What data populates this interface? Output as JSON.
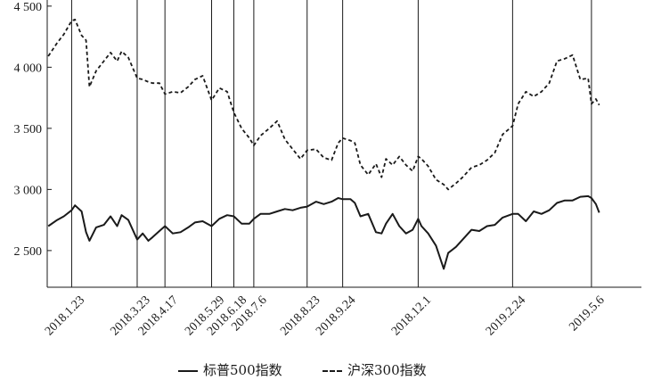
{
  "chart_data": {
    "type": "line",
    "ylim": [
      2200,
      4550
    ],
    "yticks": [
      2500,
      3000,
      3500,
      4000,
      4500
    ],
    "ytick_labels": [
      "2 500",
      "3 000",
      "3 500",
      "4 000",
      "4 500"
    ],
    "x_range": [
      "2018-01-01",
      "2019-06-20"
    ],
    "grid": false,
    "legend_position": "bottom",
    "event_dates": [
      {
        "date": "2018-01-23",
        "label": "2018.1.23"
      },
      {
        "date": "2018-03-23",
        "label": "2018.3.23"
      },
      {
        "date": "2018-04-17",
        "label": "2018.4.17"
      },
      {
        "date": "2018-05-29",
        "label": "2018.5.29"
      },
      {
        "date": "2018-06-18",
        "label": "2018.6.18"
      },
      {
        "date": "2018-07-06",
        "label": "2018.7.6"
      },
      {
        "date": "2018-08-23",
        "label": "2018.8.23"
      },
      {
        "date": "2018-09-24",
        "label": "2018.9.24"
      },
      {
        "date": "2018-12-01",
        "label": "2018.12.1"
      },
      {
        "date": "2019-02-24",
        "label": "2019.2.24"
      },
      {
        "date": "2019-05-06",
        "label": "2019.5.6"
      }
    ],
    "series": [
      {
        "name": "标普500指数",
        "style": "solid",
        "color": "#1a1a1a",
        "points": [
          [
            "2018-01-02",
            2700
          ],
          [
            "2018-01-10",
            2750
          ],
          [
            "2018-01-16",
            2780
          ],
          [
            "2018-01-23",
            2830
          ],
          [
            "2018-01-26",
            2870
          ],
          [
            "2018-02-01",
            2820
          ],
          [
            "2018-02-05",
            2650
          ],
          [
            "2018-02-08",
            2580
          ],
          [
            "2018-02-14",
            2690
          ],
          [
            "2018-02-21",
            2710
          ],
          [
            "2018-02-27",
            2780
          ],
          [
            "2018-03-05",
            2700
          ],
          [
            "2018-03-09",
            2790
          ],
          [
            "2018-03-15",
            2750
          ],
          [
            "2018-03-23",
            2590
          ],
          [
            "2018-03-28",
            2640
          ],
          [
            "2018-04-02",
            2580
          ],
          [
            "2018-04-06",
            2610
          ],
          [
            "2018-04-12",
            2660
          ],
          [
            "2018-04-17",
            2700
          ],
          [
            "2018-04-24",
            2640
          ],
          [
            "2018-05-01",
            2650
          ],
          [
            "2018-05-08",
            2690
          ],
          [
            "2018-05-14",
            2730
          ],
          [
            "2018-05-21",
            2740
          ],
          [
            "2018-05-29",
            2700
          ],
          [
            "2018-06-05",
            2760
          ],
          [
            "2018-06-12",
            2790
          ],
          [
            "2018-06-18",
            2780
          ],
          [
            "2018-06-25",
            2720
          ],
          [
            "2018-07-02",
            2720
          ],
          [
            "2018-07-06",
            2760
          ],
          [
            "2018-07-12",
            2800
          ],
          [
            "2018-07-20",
            2800
          ],
          [
            "2018-07-27",
            2820
          ],
          [
            "2018-08-03",
            2840
          ],
          [
            "2018-08-10",
            2830
          ],
          [
            "2018-08-17",
            2850
          ],
          [
            "2018-08-23",
            2860
          ],
          [
            "2018-08-31",
            2900
          ],
          [
            "2018-09-07",
            2880
          ],
          [
            "2018-09-14",
            2900
          ],
          [
            "2018-09-20",
            2930
          ],
          [
            "2018-09-24",
            2920
          ],
          [
            "2018-10-01",
            2920
          ],
          [
            "2018-10-05",
            2890
          ],
          [
            "2018-10-10",
            2780
          ],
          [
            "2018-10-17",
            2800
          ],
          [
            "2018-10-24",
            2650
          ],
          [
            "2018-10-29",
            2640
          ],
          [
            "2018-11-02",
            2720
          ],
          [
            "2018-11-08",
            2800
          ],
          [
            "2018-11-14",
            2700
          ],
          [
            "2018-11-20",
            2640
          ],
          [
            "2018-11-26",
            2670
          ],
          [
            "2018-12-01",
            2760
          ],
          [
            "2018-12-04",
            2700
          ],
          [
            "2018-12-10",
            2640
          ],
          [
            "2018-12-17",
            2540
          ],
          [
            "2018-12-24",
            2350
          ],
          [
            "2018-12-28",
            2480
          ],
          [
            "2019-01-04",
            2530
          ],
          [
            "2019-01-10",
            2590
          ],
          [
            "2019-01-18",
            2670
          ],
          [
            "2019-01-25",
            2660
          ],
          [
            "2019-02-01",
            2700
          ],
          [
            "2019-02-08",
            2710
          ],
          [
            "2019-02-15",
            2770
          ],
          [
            "2019-02-24",
            2800
          ],
          [
            "2019-03-01",
            2800
          ],
          [
            "2019-03-08",
            2740
          ],
          [
            "2019-03-15",
            2820
          ],
          [
            "2019-03-22",
            2800
          ],
          [
            "2019-03-29",
            2830
          ],
          [
            "2019-04-05",
            2890
          ],
          [
            "2019-04-12",
            2910
          ],
          [
            "2019-04-19",
            2910
          ],
          [
            "2019-04-26",
            2940
          ],
          [
            "2019-05-03",
            2945
          ],
          [
            "2019-05-06",
            2930
          ],
          [
            "2019-05-10",
            2880
          ],
          [
            "2019-05-13",
            2810
          ]
        ]
      },
      {
        "name": "沪深300指数",
        "style": "dashed",
        "color": "#1a1a1a",
        "points": [
          [
            "2018-01-02",
            4090
          ],
          [
            "2018-01-10",
            4200
          ],
          [
            "2018-01-16",
            4270
          ],
          [
            "2018-01-23",
            4380
          ],
          [
            "2018-01-26",
            4390
          ],
          [
            "2018-02-01",
            4260
          ],
          [
            "2018-02-05",
            4220
          ],
          [
            "2018-02-08",
            3840
          ],
          [
            "2018-02-14",
            3970
          ],
          [
            "2018-02-21",
            4050
          ],
          [
            "2018-02-27",
            4120
          ],
          [
            "2018-03-05",
            4050
          ],
          [
            "2018-03-09",
            4130
          ],
          [
            "2018-03-15",
            4080
          ],
          [
            "2018-03-23",
            3910
          ],
          [
            "2018-03-28",
            3900
          ],
          [
            "2018-04-02",
            3880
          ],
          [
            "2018-04-06",
            3870
          ],
          [
            "2018-04-12",
            3870
          ],
          [
            "2018-04-17",
            3780
          ],
          [
            "2018-04-24",
            3800
          ],
          [
            "2018-05-01",
            3790
          ],
          [
            "2018-05-08",
            3840
          ],
          [
            "2018-05-14",
            3900
          ],
          [
            "2018-05-21",
            3930
          ],
          [
            "2018-05-29",
            3730
          ],
          [
            "2018-06-05",
            3830
          ],
          [
            "2018-06-12",
            3800
          ],
          [
            "2018-06-18",
            3630
          ],
          [
            "2018-06-25",
            3500
          ],
          [
            "2018-07-02",
            3420
          ],
          [
            "2018-07-06",
            3360
          ],
          [
            "2018-07-12",
            3440
          ],
          [
            "2018-07-20",
            3500
          ],
          [
            "2018-07-27",
            3560
          ],
          [
            "2018-08-03",
            3410
          ],
          [
            "2018-08-10",
            3330
          ],
          [
            "2018-08-17",
            3250
          ],
          [
            "2018-08-23",
            3320
          ],
          [
            "2018-08-31",
            3330
          ],
          [
            "2018-09-07",
            3260
          ],
          [
            "2018-09-14",
            3240
          ],
          [
            "2018-09-20",
            3380
          ],
          [
            "2018-09-24",
            3420
          ],
          [
            "2018-10-01",
            3400
          ],
          [
            "2018-10-05",
            3380
          ],
          [
            "2018-10-10",
            3200
          ],
          [
            "2018-10-17",
            3120
          ],
          [
            "2018-10-24",
            3210
          ],
          [
            "2018-10-29",
            3100
          ],
          [
            "2018-11-02",
            3250
          ],
          [
            "2018-11-08",
            3200
          ],
          [
            "2018-11-14",
            3270
          ],
          [
            "2018-11-20",
            3200
          ],
          [
            "2018-11-26",
            3150
          ],
          [
            "2018-12-01",
            3270
          ],
          [
            "2018-12-04",
            3250
          ],
          [
            "2018-12-10",
            3190
          ],
          [
            "2018-12-17",
            3080
          ],
          [
            "2018-12-24",
            3040
          ],
          [
            "2018-12-28",
            3000
          ],
          [
            "2019-01-04",
            3050
          ],
          [
            "2019-01-10",
            3100
          ],
          [
            "2019-01-18",
            3180
          ],
          [
            "2019-01-25",
            3200
          ],
          [
            "2019-02-01",
            3240
          ],
          [
            "2019-02-08",
            3300
          ],
          [
            "2019-02-15",
            3450
          ],
          [
            "2019-02-24",
            3520
          ],
          [
            "2019-03-01",
            3700
          ],
          [
            "2019-03-08",
            3800
          ],
          [
            "2019-03-15",
            3760
          ],
          [
            "2019-03-22",
            3800
          ],
          [
            "2019-03-29",
            3870
          ],
          [
            "2019-04-05",
            4050
          ],
          [
            "2019-04-12",
            4070
          ],
          [
            "2019-04-19",
            4100
          ],
          [
            "2019-04-26",
            3900
          ],
          [
            "2019-05-03",
            3910
          ],
          [
            "2019-05-06",
            3700
          ],
          [
            "2019-05-10",
            3740
          ],
          [
            "2019-05-13",
            3690
          ]
        ]
      }
    ]
  }
}
